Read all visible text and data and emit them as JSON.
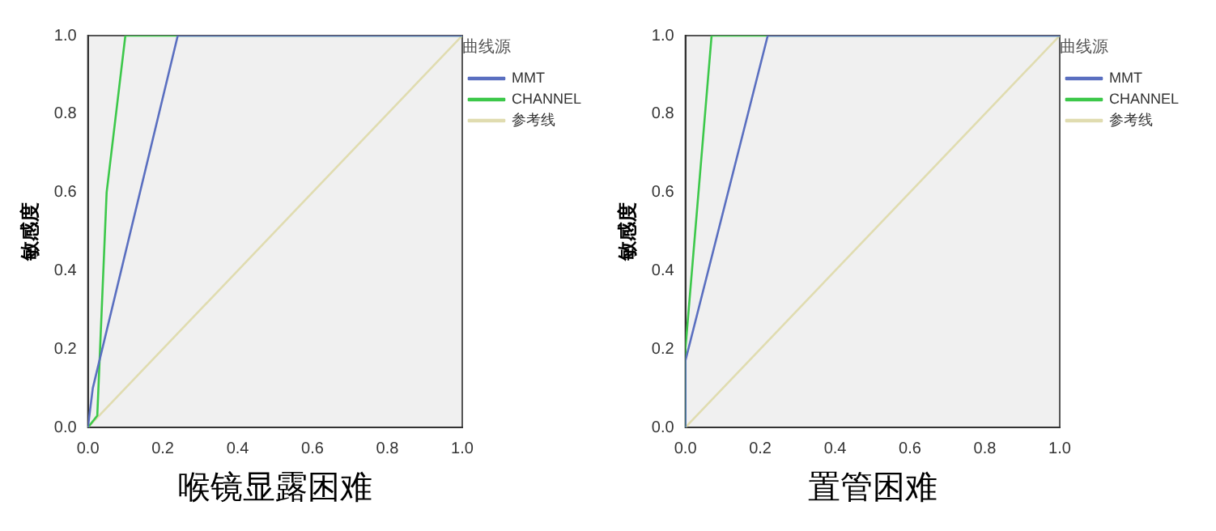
{
  "chart_data": [
    {
      "type": "line",
      "xlabel": "喉镜显露困难",
      "ylabel": "敏感度",
      "legend_title": "曲线源",
      "legend": "right",
      "grid": false,
      "xlim": [
        0,
        1
      ],
      "ylim": [
        0,
        1
      ],
      "xticks": [
        {
          "value": 0,
          "label": "0.0"
        },
        {
          "value": 0.2,
          "label": "0.2"
        },
        {
          "value": 0.4,
          "label": "0.4"
        },
        {
          "value": 0.6,
          "label": "0.6"
        },
        {
          "value": 0.8,
          "label": "0.8"
        },
        {
          "value": 1,
          "label": "1.0"
        }
      ],
      "yticks": [
        {
          "value": 0,
          "label": "0.0"
        },
        {
          "value": 0.2,
          "label": "0.2"
        },
        {
          "value": 0.4,
          "label": "0.4"
        },
        {
          "value": 0.6,
          "label": "0.6"
        },
        {
          "value": 0.8,
          "label": "0.8"
        },
        {
          "value": 1,
          "label": "1.0"
        }
      ],
      "series": [
        {
          "name": "MMT",
          "color": "#5a6fc0",
          "x": [
            0,
            0.013,
            0.24,
            1
          ],
          "values": [
            0,
            0.1,
            1,
            1
          ]
        },
        {
          "name": "CHANNEL",
          "color": "#3cc84a",
          "x": [
            0,
            0.025,
            0.05,
            0.1,
            1
          ],
          "values": [
            0,
            0.03,
            0.6,
            1,
            1
          ]
        },
        {
          "name": "参考线",
          "color": "#e0dcb0",
          "x": [
            0,
            1
          ],
          "values": [
            0,
            1
          ]
        }
      ]
    },
    {
      "type": "line",
      "xlabel": "置管困难",
      "ylabel": "敏感度",
      "legend_title": "曲线源",
      "legend": "right",
      "grid": false,
      "xlim": [
        0,
        1
      ],
      "ylim": [
        0,
        1
      ],
      "xticks": [
        {
          "value": 0,
          "label": "0.0"
        },
        {
          "value": 0.2,
          "label": "0.2"
        },
        {
          "value": 0.4,
          "label": "0.4"
        },
        {
          "value": 0.6,
          "label": "0.6"
        },
        {
          "value": 0.8,
          "label": "0.8"
        },
        {
          "value": 1,
          "label": "1.0"
        }
      ],
      "yticks": [
        {
          "value": 0,
          "label": "0.0"
        },
        {
          "value": 0.2,
          "label": "0.2"
        },
        {
          "value": 0.4,
          "label": "0.4"
        },
        {
          "value": 0.6,
          "label": "0.6"
        },
        {
          "value": 0.8,
          "label": "0.8"
        },
        {
          "value": 1,
          "label": "1.0"
        }
      ],
      "series": [
        {
          "name": "MMT",
          "color": "#5a6fc0",
          "x": [
            0,
            0,
            0.22,
            1
          ],
          "values": [
            0,
            0.17,
            1,
            1
          ]
        },
        {
          "name": "CHANNEL",
          "color": "#3cc84a",
          "x": [
            0,
            0,
            0.07,
            1
          ],
          "values": [
            0,
            0.2,
            1,
            1
          ]
        },
        {
          "name": "参考线",
          "color": "#e0dcb0",
          "x": [
            0,
            1
          ],
          "values": [
            0,
            1
          ]
        }
      ]
    }
  ]
}
